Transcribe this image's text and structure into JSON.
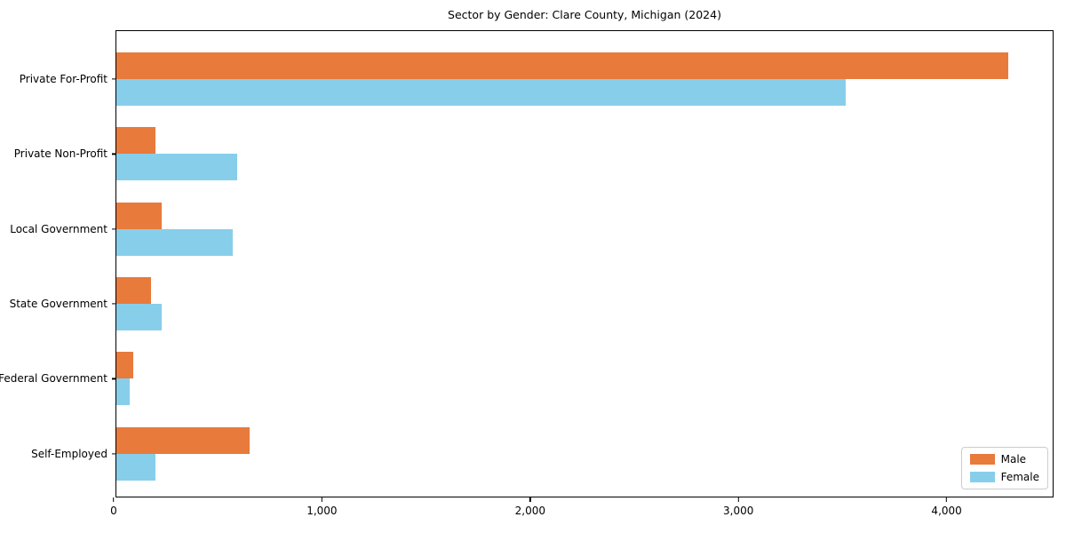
{
  "chart_data": {
    "type": "bar",
    "orientation": "horizontal",
    "title": "Sector by Gender: Clare County, Michigan (2024)",
    "xlabel": "",
    "ylabel": "",
    "categories": [
      "Private For-Profit",
      "Private Non-Profit",
      "Local Government",
      "State Government",
      "Federal Government",
      "Self-Employed"
    ],
    "series": [
      {
        "name": "Male",
        "color": "#e87a3c",
        "values": [
          4290,
          190,
          220,
          165,
          80,
          640
        ]
      },
      {
        "name": "Female",
        "color": "#87ceeb",
        "values": [
          3510,
          580,
          560,
          220,
          65,
          190
        ]
      }
    ],
    "xlim": [
      0,
      4505
    ],
    "xticks": [
      {
        "value": 0,
        "label": "0"
      },
      {
        "value": 1000,
        "label": "1,000"
      },
      {
        "value": 2000,
        "label": "2,000"
      },
      {
        "value": 3000,
        "label": "3,000"
      },
      {
        "value": 4000,
        "label": "4,000"
      }
    ],
    "grid": false,
    "legend_position": "lower right",
    "plot_border_color": "#000000",
    "background_color": "#ffffff"
  }
}
